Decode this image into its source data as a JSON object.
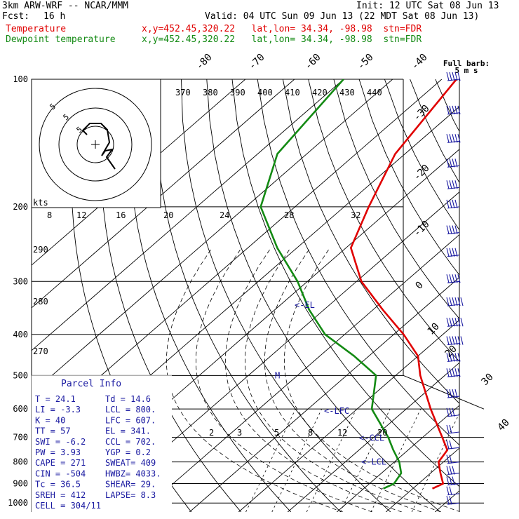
{
  "header": {
    "model": "3km ARW-WRF -- NCAR/MMM",
    "init": "Init: 12 UTC Sat 08 Jun 13",
    "fcst_label": "Fcst:",
    "fcst_value": "16 h",
    "valid": "Valid: 04 UTC Sun 09 Jun 13 (22 MDT Sat 08 Jun 13)",
    "lines": [
      {
        "name": "Temperature",
        "info": "x,y=452.45,320.22   lat,lon= 34.34, -98.98  stn=FDR"
      },
      {
        "name": "Dewpoint temperature",
        "info": "x,y=452.45,320.22   lat,lon= 34.34, -98.98  stn=FDR"
      }
    ]
  },
  "colors": {
    "temperature": "#e00000",
    "dewpoint": "#138a13",
    "parcel": "#1818a0",
    "barbs": "#1818a0"
  },
  "chart_data": {
    "type": "skew-t",
    "pressure_labels": [
      "100",
      "200",
      "300",
      "400",
      "500",
      "600",
      "700",
      "800",
      "900",
      "1000"
    ],
    "isotherm_labels": [
      "-80",
      "-70",
      "-60",
      "-50",
      "-40",
      "-30",
      "-20",
      "-10",
      "0",
      "10",
      "20",
      "30",
      "40"
    ],
    "theta_labels": [
      "370",
      "380",
      "390",
      "400",
      "410",
      "420",
      "430",
      "440"
    ],
    "theta_left_labels": [
      "290",
      "280",
      "270"
    ],
    "wind_speed_labels": [
      "8",
      "12",
      "16",
      "20",
      "24",
      "28",
      "32"
    ],
    "mixing_ratio_labels": [
      "2",
      "3",
      "5",
      "8",
      "12",
      "20"
    ],
    "hodograph": {
      "unit": "kts",
      "ring_labels": [
        "5",
        "5",
        "5"
      ]
    },
    "temperature": {
      "p": [
        100,
        150,
        200,
        250,
        300,
        350,
        400,
        450,
        500,
        600,
        700,
        750,
        800,
        850,
        900,
        925
      ],
      "t": [
        -67,
        -62,
        -55,
        -49,
        -39,
        -28,
        -18,
        -10,
        -5,
        5,
        14,
        18,
        19,
        22,
        25,
        24
      ]
    },
    "dewpoint": {
      "p": [
        100,
        150,
        200,
        250,
        300,
        350,
        400,
        450,
        500,
        600,
        700,
        750,
        800,
        850,
        900,
        925
      ],
      "t": [
        -90,
        -86,
        -77,
        -64,
        -52,
        -43,
        -34,
        -23,
        -14,
        -7,
        3,
        7,
        11,
        14,
        15,
        14
      ]
    },
    "parcel_markers": [
      {
        "label": "EL",
        "p": 341
      },
      {
        "label": "LFC",
        "p": 607
      },
      {
        "label": "CCL",
        "p": 702
      },
      {
        "label": "LCL",
        "p": 800
      },
      {
        "label": "M",
        "p": 500
      }
    ],
    "wind_barbs": {
      "title": "Full barb:",
      "subtitle": "5 m s",
      "p": [
        100,
        120,
        140,
        160,
        180,
        200,
        230,
        260,
        300,
        340,
        380,
        420,
        460,
        500,
        560,
        620,
        680,
        740,
        800,
        850,
        900,
        950,
        1000
      ],
      "speed_ms": [
        25,
        25,
        25,
        20,
        20,
        20,
        20,
        20,
        25,
        30,
        30,
        30,
        25,
        25,
        20,
        15,
        10,
        10,
        10,
        15,
        15,
        10,
        10
      ]
    }
  },
  "parcel_info": {
    "title": "Parcel Info",
    "rows": [
      [
        "T  =     24.1",
        "Td  =  14.6"
      ],
      [
        "LI =     -3.3",
        "LCL =  800."
      ],
      [
        "K  =       40",
        "LFC =  607."
      ],
      [
        "TT =       57",
        "EL  =  341."
      ],
      [
        "SWI =    -6.2",
        "CCL =  702."
      ],
      [
        "PW =     3.93",
        "YGP =   0.2"
      ],
      [
        "CAPE =    271",
        "SWEAT=  409"
      ],
      [
        "CIN =    -504",
        "HWBZ= 4033."
      ],
      [
        "Tc =     36.5",
        "SHEAR=  29."
      ],
      [
        "SREH =    412",
        "LAPSE=  8.3"
      ],
      [
        "CELL = 304/11",
        ""
      ]
    ]
  }
}
